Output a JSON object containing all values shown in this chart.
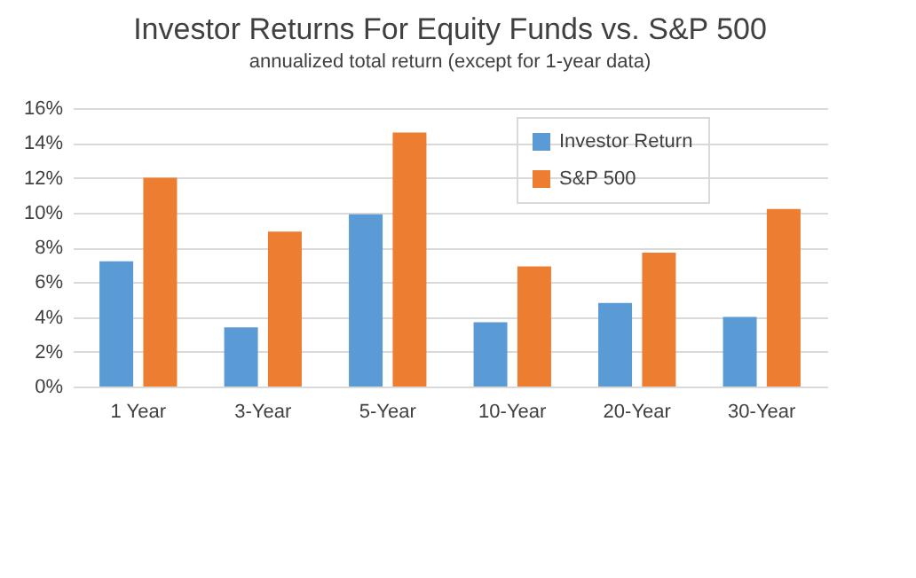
{
  "chart_data": {
    "type": "bar",
    "title": "Investor Returns For Equity Funds vs. S&P 500",
    "subtitle": "annualized total return (except for 1-year data)",
    "categories": [
      "1 Year",
      "3-Year",
      "5-Year",
      "10-Year",
      "20-Year",
      "30-Year"
    ],
    "series": [
      {
        "name": "Investor Return",
        "color": "#5b9bd5",
        "values": [
          7.2,
          3.4,
          9.9,
          3.7,
          4.8,
          4.0
        ]
      },
      {
        "name": "S&P 500",
        "color": "#ed7d31",
        "values": [
          12.0,
          8.9,
          14.6,
          6.9,
          7.7,
          10.2
        ]
      }
    ],
    "ylim": [
      0,
      16
    ],
    "yticks": [
      {
        "value": 0,
        "label": "0%"
      },
      {
        "value": 2,
        "label": "2%"
      },
      {
        "value": 4,
        "label": "4%"
      },
      {
        "value": 6,
        "label": "6%"
      },
      {
        "value": 8,
        "label": "8%"
      },
      {
        "value": 10,
        "label": "10%"
      },
      {
        "value": 12,
        "label": "12%"
      },
      {
        "value": 14,
        "label": "14%"
      },
      {
        "value": 16,
        "label": "16%"
      }
    ],
    "grid": "y",
    "legend": "top right"
  }
}
